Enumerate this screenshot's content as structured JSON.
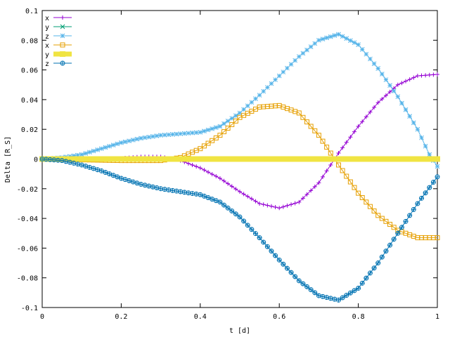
{
  "chart_data": {
    "type": "line",
    "xlabel": "t [d]",
    "ylabel": "Delta [R_S]",
    "xlim": [
      0,
      1
    ],
    "ylim": [
      -0.1,
      0.1
    ],
    "x_ticks": [
      "0",
      "0.2",
      "0.4",
      "0.6",
      "0.8",
      "1"
    ],
    "y_ticks": [
      "-0.1",
      "-0.08",
      "-0.06",
      "-0.04",
      "-0.02",
      "0",
      "0.02",
      "0.04",
      "0.06",
      "0.08",
      "0.1"
    ],
    "grid": false,
    "legend_position": "top-left",
    "series": [
      {
        "name": "x",
        "color": "#9400d3",
        "marker": "plus",
        "points": [
          [
            0,
            0
          ],
          [
            0.05,
            0
          ],
          [
            0.1,
            0
          ],
          [
            0.15,
            0
          ],
          [
            0.2,
            0.0005
          ],
          [
            0.25,
            0.0015
          ],
          [
            0.3,
            0.0015
          ],
          [
            0.35,
            -0.001
          ],
          [
            0.4,
            -0.006
          ],
          [
            0.45,
            -0.013
          ],
          [
            0.5,
            -0.022
          ],
          [
            0.55,
            -0.03
          ],
          [
            0.6,
            -0.033
          ],
          [
            0.65,
            -0.029
          ],
          [
            0.7,
            -0.016
          ],
          [
            0.75,
            0.004
          ],
          [
            0.8,
            0.022
          ],
          [
            0.85,
            0.038
          ],
          [
            0.9,
            0.05
          ],
          [
            0.95,
            0.056
          ],
          [
            1.0,
            0.057
          ]
        ]
      },
      {
        "name": "y",
        "color": "#009e73",
        "marker": "x",
        "points": [
          [
            0,
            0
          ],
          [
            0.25,
            0
          ],
          [
            0.5,
            0
          ],
          [
            0.75,
            0
          ],
          [
            1.0,
            0
          ]
        ]
      },
      {
        "name": "z",
        "color": "#56b4e9",
        "marker": "star",
        "points": [
          [
            0,
            0
          ],
          [
            0.05,
            0.001
          ],
          [
            0.1,
            0.003
          ],
          [
            0.15,
            0.007
          ],
          [
            0.2,
            0.011
          ],
          [
            0.25,
            0.014
          ],
          [
            0.3,
            0.016
          ],
          [
            0.35,
            0.017
          ],
          [
            0.4,
            0.018
          ],
          [
            0.45,
            0.022
          ],
          [
            0.5,
            0.031
          ],
          [
            0.55,
            0.043
          ],
          [
            0.6,
            0.056
          ],
          [
            0.65,
            0.069
          ],
          [
            0.7,
            0.08
          ],
          [
            0.75,
            0.084
          ],
          [
            0.8,
            0.077
          ],
          [
            0.85,
            0.061
          ],
          [
            0.9,
            0.042
          ],
          [
            0.95,
            0.02
          ],
          [
            0.98,
            0.003
          ],
          [
            1.0,
            -0.005
          ]
        ]
      },
      {
        "name": "x",
        "color": "#e69f00",
        "marker": "box",
        "points": [
          [
            0,
            0
          ],
          [
            0.1,
            -0.0005
          ],
          [
            0.2,
            -0.001
          ],
          [
            0.3,
            -0.001
          ],
          [
            0.35,
            0.001
          ],
          [
            0.4,
            0.007
          ],
          [
            0.45,
            0.016
          ],
          [
            0.5,
            0.028
          ],
          [
            0.55,
            0.035
          ],
          [
            0.6,
            0.036
          ],
          [
            0.65,
            0.031
          ],
          [
            0.7,
            0.016
          ],
          [
            0.75,
            -0.004
          ],
          [
            0.8,
            -0.023
          ],
          [
            0.85,
            -0.038
          ],
          [
            0.9,
            -0.048
          ],
          [
            0.95,
            -0.053
          ],
          [
            1.0,
            -0.053
          ]
        ]
      },
      {
        "name": "y",
        "color": "#f0e442",
        "marker": "filled-box",
        "points": [
          [
            0,
            0
          ],
          [
            0.25,
            0
          ],
          [
            0.5,
            0
          ],
          [
            0.75,
            0
          ],
          [
            1.0,
            0
          ]
        ]
      },
      {
        "name": "z",
        "color": "#0072b2",
        "marker": "circle-plus",
        "points": [
          [
            0,
            0
          ],
          [
            0.05,
            -0.001
          ],
          [
            0.1,
            -0.004
          ],
          [
            0.15,
            -0.008
          ],
          [
            0.2,
            -0.013
          ],
          [
            0.25,
            -0.017
          ],
          [
            0.3,
            -0.02
          ],
          [
            0.35,
            -0.022
          ],
          [
            0.4,
            -0.024
          ],
          [
            0.45,
            -0.029
          ],
          [
            0.5,
            -0.039
          ],
          [
            0.55,
            -0.053
          ],
          [
            0.6,
            -0.068
          ],
          [
            0.65,
            -0.082
          ],
          [
            0.7,
            -0.092
          ],
          [
            0.75,
            -0.095
          ],
          [
            0.8,
            -0.087
          ],
          [
            0.85,
            -0.07
          ],
          [
            0.9,
            -0.05
          ],
          [
            0.95,
            -0.03
          ],
          [
            1.0,
            -0.012
          ]
        ]
      }
    ]
  }
}
